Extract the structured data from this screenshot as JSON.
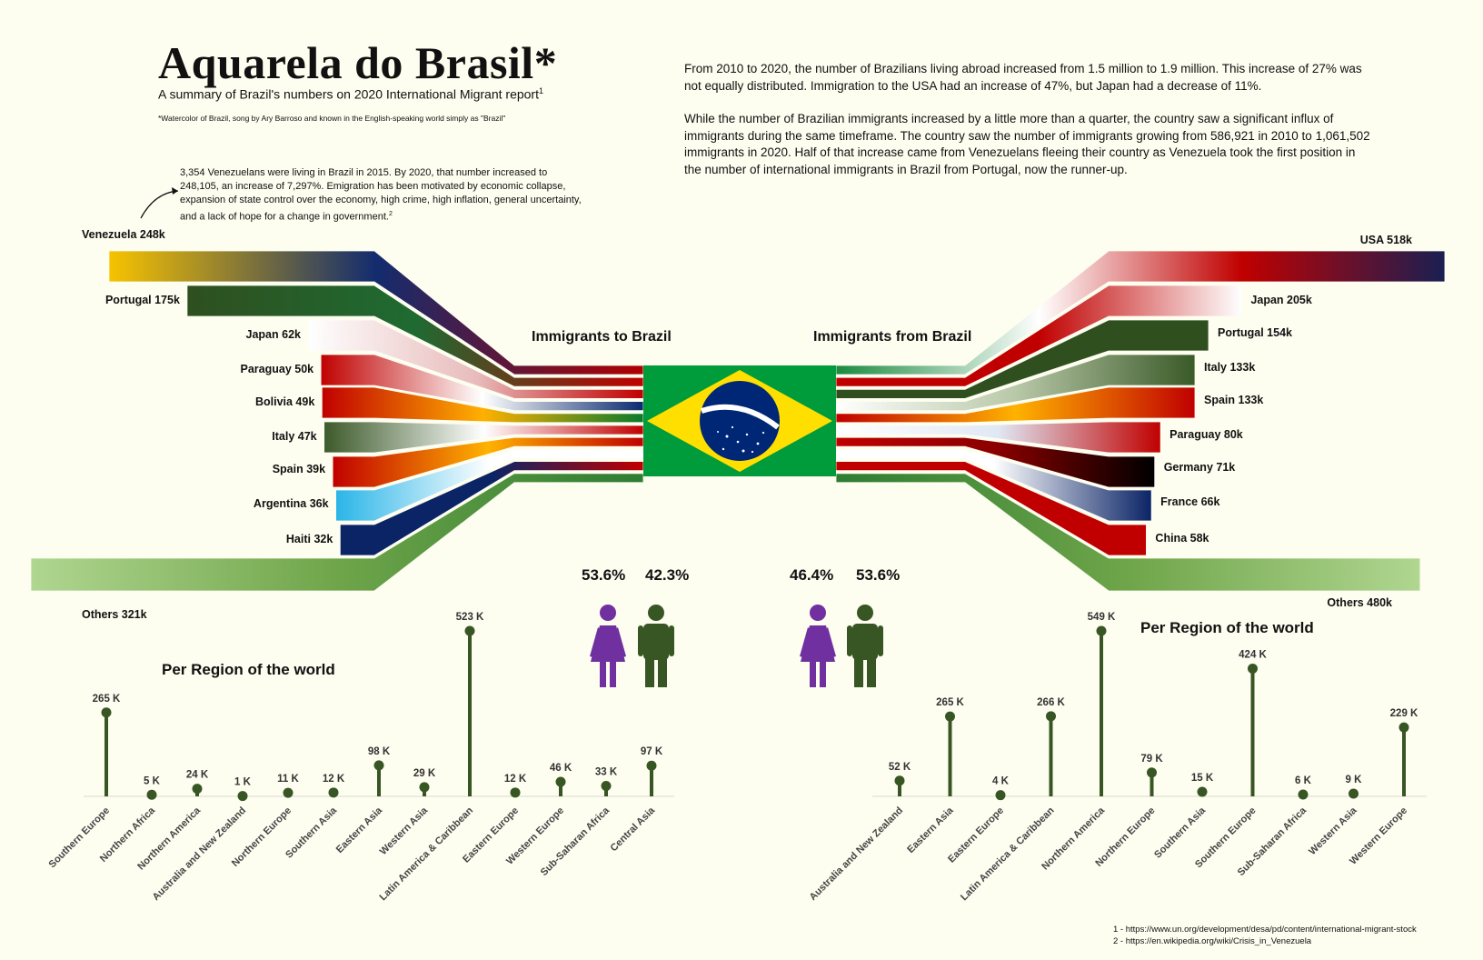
{
  "header": {
    "title": "Aquarela do Brasil*",
    "subtitle": "A summary of Brazil's numbers on 2020 International Migrant report",
    "subtitle_sup": "1",
    "footnote": "*Watercolor of Brazil, song by Ary Barroso and known in the English-speaking world simply as \"Brazil\""
  },
  "intro": {
    "para1": "From 2010 to 2020, the number of Brazilians living abroad increased from 1.5 million to 1.9 million. This increase of 27% was not equally distributed. Immigration to the USA had an increase of 47%, but Japan had a decrease of 11%.",
    "para2": "While the number of Brazilian immigrants increased by a little more than a quarter, the country saw a significant influx of immigrants during the same timeframe. The country saw the number of immigrants growing from 586,921 in 2010 to 1,061,502 immigrants in 2020. Half of that increase came from Venezuelans fleeing their country as Venezuela took the first position in the number of international immigrants in Brazil from Portugal, now the runner-up."
  },
  "venezuela_note": {
    "text": "3,354 Venezuelans were living in Brazil in 2015. By 2020, that number increased to 248,105, an increase of 7,297%. Emigration has been motivated by economic collapse, expansion of state control over the economy, high crime, high inflation, general uncertainty, and a lack of hope for a change in government.",
    "sup": "2"
  },
  "sections": {
    "to_brazil": "Immigrants to Brazil",
    "from_brazil": "Immigrants from Brazil",
    "region_left": "Per Region of the world",
    "region_right": "Per Region of the world"
  },
  "gender": {
    "to_female": "53.6%",
    "to_male": "42.3%",
    "from_female": "46.4%",
    "from_male": "53.6%",
    "female_color": "#7030a0",
    "male_color": "#375623"
  },
  "sources": {
    "s1": "1 - https://www.un.org/development/desa/pd/content/international-migrant-stock",
    "s2": "2 - https://en.wikipedia.org/wiki/Crisis_in_Venezuela"
  },
  "chart_data": [
    {
      "type": "bar",
      "name": "immigrants_to_brazil",
      "categories": [
        "Venezuela",
        "Portugal",
        "Japan",
        "Paraguay",
        "Bolivia",
        "Italy",
        "Spain",
        "Argentina",
        "Haiti",
        "Others"
      ],
      "labels": [
        "Venezuela 248k",
        "Portugal 175k",
        "Japan 62k",
        "Paraguay 50k",
        "Bolivia 49k",
        "Italy 47k",
        "Spain 39k",
        "Argentina 36k",
        "Haiti 32k",
        "Others 321k"
      ],
      "values": [
        248,
        175,
        62,
        50,
        49,
        47,
        39,
        36,
        32,
        321
      ],
      "unit": "thousands",
      "colors": [
        [
          "#f7c300",
          "#132c6e",
          "#b00000"
        ],
        [
          "#2f4f1f",
          "#1e6b32",
          "#c00000"
        ],
        [
          "#ffffff",
          "#e8bcbc",
          "#c00000"
        ],
        [
          "#c00000",
          "#ffffff",
          "#0b2a6e"
        ],
        [
          "#c00000",
          "#ffb000",
          "#0a7a2c"
        ],
        [
          "#3c5a2a",
          "#ffffff",
          "#c00000"
        ],
        [
          "#c00000",
          "#ffb200",
          "#c00000"
        ],
        [
          "#2ab5e8",
          "#ffffff",
          "#ffffff"
        ],
        [
          "#0b2466",
          "#0b2466",
          "#c00000"
        ],
        [
          "#b0d690",
          "#6fa54a",
          "#2e7d32"
        ]
      ]
    },
    {
      "type": "bar",
      "name": "immigrants_from_brazil",
      "categories": [
        "USA",
        "Japan",
        "Portugal",
        "Italy",
        "Spain",
        "Paraguay",
        "Germany",
        "France",
        "China",
        "Others"
      ],
      "labels": [
        "USA 518k",
        "Japan 205k",
        "Portugal 154k",
        "Italy 133k",
        "Spain 133k",
        "Paraguay 80k",
        "Germany 71k",
        "France 66k",
        "China 58k",
        "Others 480k"
      ],
      "values": [
        518,
        205,
        154,
        133,
        133,
        80,
        71,
        66,
        58,
        480
      ],
      "unit": "thousands",
      "colors": [
        [
          "#1a8a3f",
          "#ffffff",
          "#c00000",
          "#1a1f52"
        ],
        [
          "#c00000",
          "#c00000",
          "#ffffff"
        ],
        [
          "#2f4f1f",
          "#2f4f1f",
          "#2f4f1f"
        ],
        [
          "#ffffff",
          "#b8c8a8",
          "#3a5a28"
        ],
        [
          "#c00000",
          "#ffb200",
          "#c00000"
        ],
        [
          "#ffffff",
          "#e0e8f4",
          "#c00000"
        ],
        [
          "#c00000",
          "#8b0000",
          "#000000"
        ],
        [
          "#ffffff",
          "#ffffff",
          "#0b2466"
        ],
        [
          "#c00000",
          "#c00000",
          "#c00000"
        ],
        [
          "#2e7d32",
          "#6fa54a",
          "#b0d690"
        ]
      ]
    },
    {
      "type": "lollipop",
      "name": "per_region_to_brazil",
      "categories": [
        "Southern Europe",
        "Northern Africa",
        "Northern America",
        "Australia and New Zealand",
        "Northern Europe",
        "Southern Asia",
        "Eastern Asia",
        "Western Asia",
        "Latin America & Caribbean",
        "Eastern Europe",
        "Western Europe",
        "Sub-Saharan Africa",
        "Central Asia"
      ],
      "values": [
        265,
        5,
        24,
        1,
        11,
        12,
        98,
        29,
        523,
        12,
        46,
        33,
        97
      ],
      "labels": [
        "265 K",
        "5 K",
        "24 K",
        "1 K",
        "11 K",
        "12 K",
        "98 K",
        "29 K",
        "523 K",
        "12 K",
        "46 K",
        "33 K",
        "97 K"
      ],
      "unit": "thousands",
      "color": "#375623"
    },
    {
      "type": "lollipop",
      "name": "per_region_from_brazil",
      "categories": [
        "Australia and New Zealand",
        "Eastern Asia",
        "Eastern Europe",
        "Latin America & Caribbean",
        "Northern America",
        "Northern Europe",
        "Southern Asia",
        "Southern Europe",
        "Sub-Saharan Africa",
        "Western Asia",
        "Western Europe"
      ],
      "values": [
        52,
        265,
        4,
        266,
        549,
        79,
        15,
        424,
        6,
        9,
        229
      ],
      "labels": [
        "52 K",
        "265 K",
        "4 K",
        "266 K",
        "549 K",
        "79 K",
        "15 K",
        "424 K",
        "6 K",
        "9 K",
        "229 K"
      ],
      "unit": "thousands",
      "color": "#375623"
    }
  ]
}
